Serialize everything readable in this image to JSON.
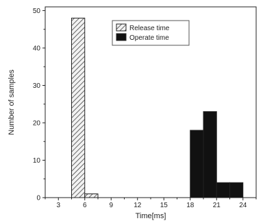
{
  "chart_data": {
    "type": "bar",
    "xlabel": "Time[ms]",
    "ylabel": "Number of samples",
    "xlim": [
      1.5,
      25.5
    ],
    "ylim": [
      0,
      51
    ],
    "bin_width": 1.5,
    "xticks": [
      3,
      6,
      9,
      12,
      15,
      18,
      21,
      24
    ],
    "xtick_labels": [
      "3",
      "6",
      "9",
      "12",
      "15",
      "18",
      "21",
      "24"
    ],
    "yticks": [
      0,
      10,
      20,
      30,
      40,
      50
    ],
    "ytick_labels": [
      "0",
      "10",
      "20",
      "30",
      "40",
      "50"
    ],
    "legend_position": "top-center",
    "grid": false,
    "series": [
      {
        "name": "Release time",
        "pattern": "hatched",
        "color": "#555555",
        "bins": [
          {
            "x0": 4.5,
            "x1": 6.0,
            "value": 48
          },
          {
            "x0": 6.0,
            "x1": 7.5,
            "value": 1
          }
        ]
      },
      {
        "name": "Operate time",
        "pattern": "solid",
        "color": "#111111",
        "bins": [
          {
            "x0": 18.0,
            "x1": 19.5,
            "value": 18
          },
          {
            "x0": 19.5,
            "x1": 21.0,
            "value": 23
          },
          {
            "x0": 21.0,
            "x1": 22.5,
            "value": 4
          },
          {
            "x0": 22.5,
            "x1": 24.0,
            "value": 4
          }
        ]
      }
    ]
  }
}
